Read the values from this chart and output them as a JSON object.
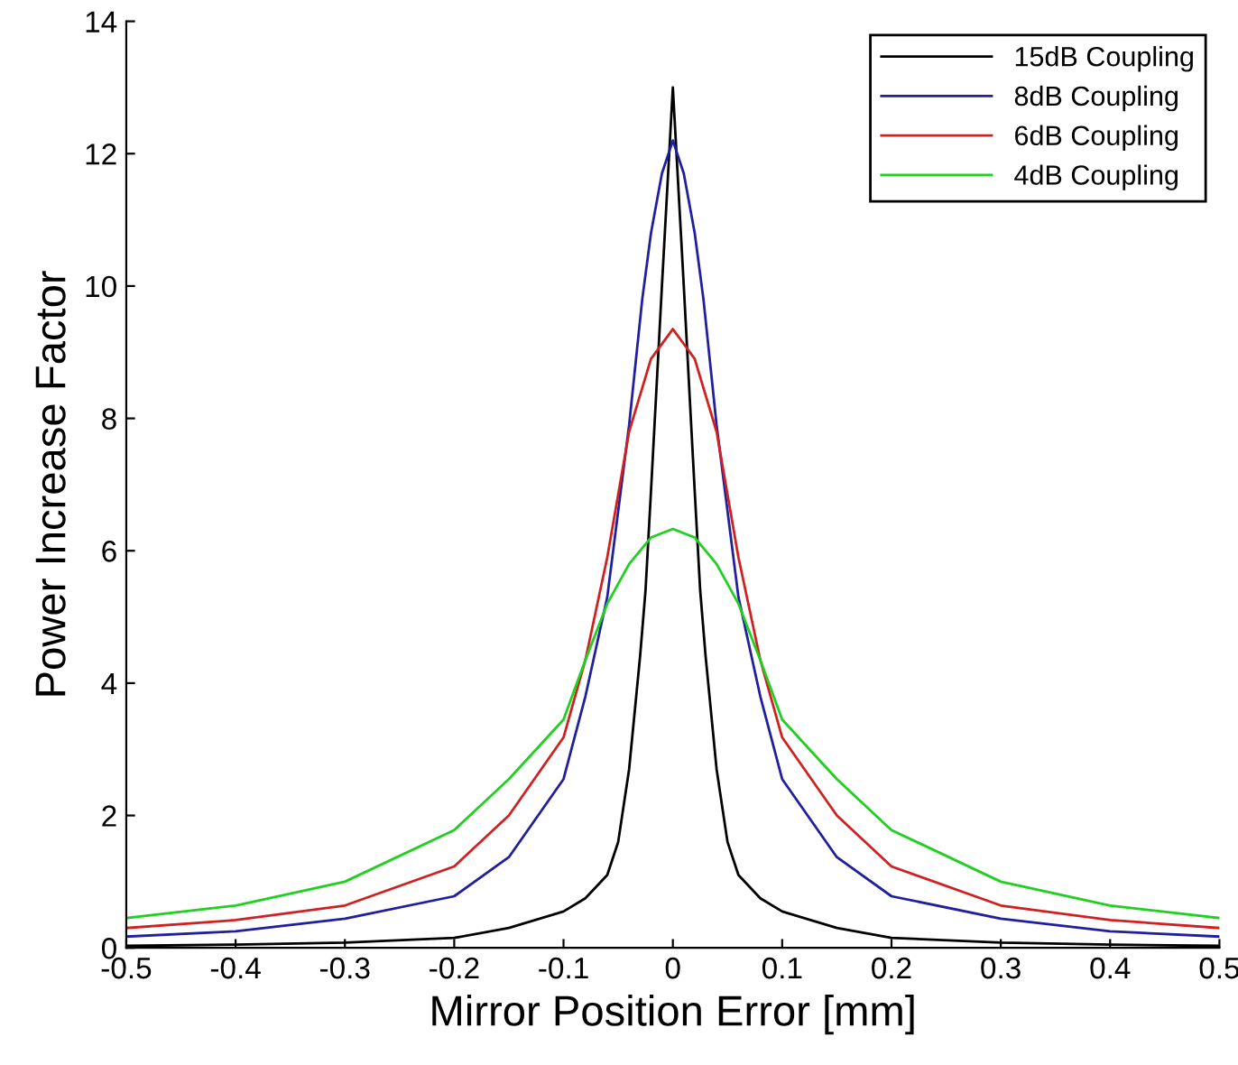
{
  "chart_data": {
    "type": "line",
    "xlabel": "Mirror Position Error [mm]",
    "ylabel": "Power Increase Factor",
    "xlim": [
      -0.5,
      0.5
    ],
    "xticks": [
      -0.5,
      -0.4,
      -0.3,
      -0.2,
      -0.1,
      0,
      0.1,
      0.2,
      0.3,
      0.4,
      0.5
    ],
    "ylim": [
      0,
      14
    ],
    "yticks": [
      0,
      2,
      4,
      6,
      8,
      10,
      12,
      14
    ],
    "grid": false,
    "legend": "top right",
    "marker": "none",
    "line_style": "solid",
    "series": [
      {
        "name": "15dB Coupling",
        "color": "#000000",
        "x": [
          -0.5,
          -0.4,
          -0.3,
          -0.2,
          -0.15,
          -0.1,
          -0.08,
          -0.06,
          -0.05,
          -0.04,
          -0.03,
          -0.025,
          -0.02,
          -0.01,
          0,
          0.01,
          0.02,
          0.025,
          0.03,
          0.04,
          0.05,
          0.06,
          0.08,
          0.1,
          0.15,
          0.2,
          0.3,
          0.4,
          0.5
        ],
        "values": [
          0.03,
          0.05,
          0.08,
          0.15,
          0.3,
          0.55,
          0.75,
          1.1,
          1.6,
          2.7,
          4.4,
          5.4,
          6.9,
          10,
          13,
          10,
          6.9,
          5.4,
          4.4,
          2.7,
          1.6,
          1.1,
          0.75,
          0.55,
          0.3,
          0.15,
          0.08,
          0.05,
          0.03
        ]
      },
      {
        "name": "8dB Coupling",
        "color": "#1f1f9f",
        "x": [
          -0.5,
          -0.4,
          -0.3,
          -0.2,
          -0.15,
          -0.1,
          -0.08,
          -0.06,
          -0.04,
          -0.028,
          -0.02,
          -0.01,
          0,
          0.01,
          0.02,
          0.028,
          0.04,
          0.06,
          0.08,
          0.1,
          0.15,
          0.2,
          0.3,
          0.4,
          0.5
        ],
        "values": [
          0.17,
          0.25,
          0.44,
          0.78,
          1.37,
          2.55,
          3.8,
          5.3,
          7.9,
          9.8,
          10.8,
          11.7,
          12.2,
          11.7,
          10.8,
          9.8,
          7.9,
          5.3,
          3.8,
          2.55,
          1.37,
          0.78,
          0.44,
          0.25,
          0.17
        ]
      },
      {
        "name": "6dB Coupling",
        "color": "#d02020",
        "x": [
          -0.5,
          -0.4,
          -0.3,
          -0.2,
          -0.15,
          -0.1,
          -0.08,
          -0.06,
          -0.04,
          -0.02,
          0,
          0.02,
          0.04,
          0.06,
          0.08,
          0.1,
          0.15,
          0.2,
          0.3,
          0.4,
          0.5
        ],
        "values": [
          0.3,
          0.42,
          0.64,
          1.23,
          2.0,
          3.18,
          4.35,
          5.9,
          7.8,
          8.9,
          9.35,
          8.9,
          7.8,
          5.9,
          4.35,
          3.18,
          2.0,
          1.23,
          0.64,
          0.42,
          0.3
        ]
      },
      {
        "name": "4dB Coupling",
        "color": "#20d020",
        "x": [
          -0.5,
          -0.4,
          -0.3,
          -0.2,
          -0.15,
          -0.1,
          -0.08,
          -0.06,
          -0.04,
          -0.02,
          0,
          0.02,
          0.04,
          0.06,
          0.08,
          0.1,
          0.15,
          0.2,
          0.3,
          0.4,
          0.5
        ],
        "values": [
          0.45,
          0.64,
          1.0,
          1.78,
          2.55,
          3.45,
          4.35,
          5.2,
          5.8,
          6.2,
          6.33,
          6.2,
          5.8,
          5.2,
          4.35,
          3.45,
          2.55,
          1.78,
          1.0,
          0.64,
          0.45
        ]
      }
    ]
  }
}
